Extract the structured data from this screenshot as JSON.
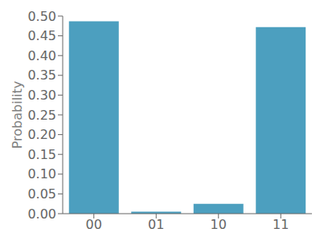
{
  "chart_data": {
    "type": "bar",
    "ylabel": "Probability",
    "categories": [
      "00",
      "01",
      "10",
      "11"
    ],
    "values": [
      0.487,
      0.005,
      0.025,
      0.472
    ],
    "color": "#4c9fbf",
    "ylim": [
      0,
      0.5
    ],
    "yticks": [
      {
        "value": 0.0,
        "label": "0.00"
      },
      0.05,
      {
        "value": 0.1,
        "label": "0.10"
      },
      0.15,
      {
        "value": 0.2,
        "label": "0.20"
      },
      0.25,
      {
        "value": 0.3,
        "label": "0.30"
      },
      0.35,
      {
        "value": 0.4,
        "label": "0.40"
      },
      0.45,
      {
        "value": 0.5,
        "label": "0.50"
      }
    ],
    "grid": false
  }
}
